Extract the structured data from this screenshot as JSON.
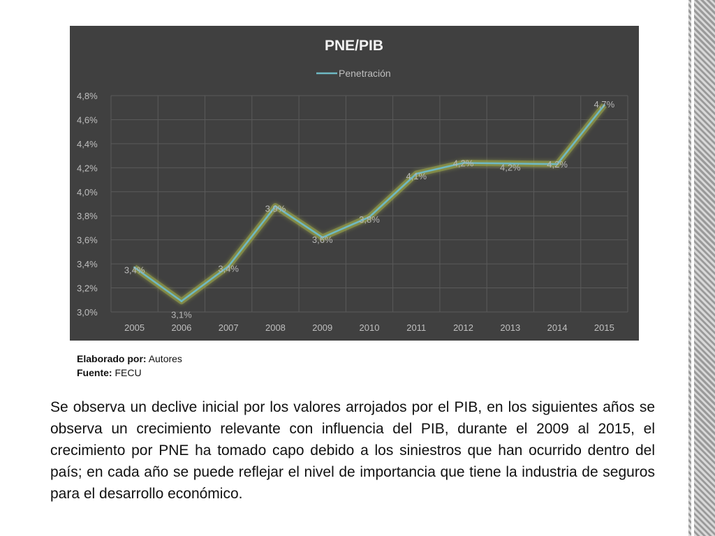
{
  "chart_data": {
    "type": "line",
    "title": "PNE/PIB",
    "categories": [
      "2005",
      "2006",
      "2007",
      "2008",
      "2009",
      "2010",
      "2011",
      "2012",
      "2013",
      "2014",
      "2015"
    ],
    "series": [
      {
        "name": "Penetración",
        "values": [
          3.37,
          3.09,
          3.38,
          3.88,
          3.62,
          3.79,
          4.15,
          4.24,
          4.235,
          4.23,
          4.72
        ],
        "labels": [
          "3,4%",
          "3,1%",
          "3,4%",
          "3,9%",
          "3,6%",
          "3,8%",
          "4,1%",
          "4,2%",
          "4,2%",
          "4,2%",
          "4,7%"
        ],
        "color": "#6fb9c4"
      }
    ],
    "ylim": [
      3.0,
      4.8
    ],
    "yticks": [
      "3,0%",
      "3,2%",
      "3,4%",
      "3,6%",
      "3,8%",
      "4,0%",
      "4,2%",
      "4,4%",
      "4,6%",
      "4,8%"
    ],
    "grid": true,
    "legend_position": "top-center",
    "background": "#404040"
  },
  "credits": {
    "author_label": "Elaborado por:",
    "author_value": "Autores",
    "source_label": "Fuente:",
    "source_value": "FECU"
  },
  "body_text": "Se observa un declive inicial por los valores arrojados por el PIB, en los siguientes años se observa un crecimiento relevante  con influencia del PIB, durante el 2009 al 2015, el crecimiento por PNE ha tomado capo debido a los siniestros que han ocurrido dentro del país; en cada año se puede reflejar el nivel de importancia que tiene la industria de seguros para el desarrollo económico."
}
